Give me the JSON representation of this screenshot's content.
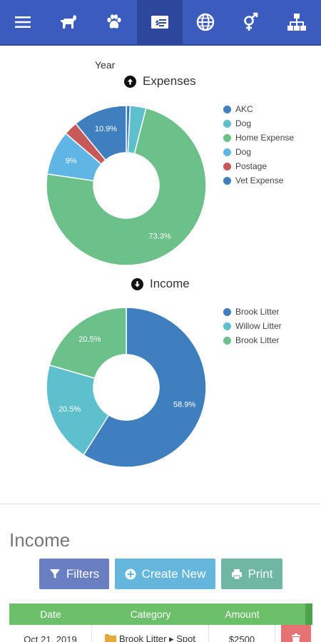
{
  "nav": {
    "items": [
      {
        "icon": "menu-icon"
      },
      {
        "icon": "dog-icon"
      },
      {
        "icon": "paw-icon"
      },
      {
        "icon": "finance-icon",
        "active": true
      },
      {
        "icon": "globe-icon"
      },
      {
        "icon": "gender-icon"
      },
      {
        "icon": "sitemap-icon"
      }
    ]
  },
  "filter": {
    "period_label": "Year"
  },
  "expenses": {
    "title": "Expenses",
    "chart_data": {
      "type": "pie",
      "donut": true,
      "title": "Expenses",
      "categories": [
        "AKC",
        "Dog",
        "Home Expense",
        "Dog",
        "Postage",
        "Vet Expense"
      ],
      "values": [
        0.8,
        3.2,
        73.3,
        9.0,
        2.8,
        10.9
      ],
      "colors": [
        "#3f7fc0",
        "#5ec0cc",
        "#6cc08a",
        "#5fb6e4",
        "#c65a5a",
        "#3f7fc0"
      ],
      "data_labels": [
        "",
        "",
        "73.3%",
        "9%",
        "",
        "10.9%"
      ],
      "legend_position": "right"
    }
  },
  "income": {
    "title": "Income",
    "chart_data": {
      "type": "pie",
      "donut": true,
      "title": "Income",
      "categories": [
        "Brook Litter",
        "Willow Litter",
        "Brook Litter"
      ],
      "values": [
        58.9,
        20.5,
        20.5
      ],
      "colors": [
        "#3f7fc0",
        "#5ec0cc",
        "#6cc08a"
      ],
      "data_labels": [
        "58.9%",
        "20.5%",
        "20.5%"
      ],
      "legend_position": "right"
    }
  },
  "section": {
    "title": "Income",
    "buttons": {
      "filters": "Filters",
      "create": "Create New",
      "print": "Print"
    }
  },
  "table": {
    "columns": [
      "Date",
      "Category",
      "Amount"
    ],
    "rows": [
      {
        "date": "Oct 21, 2019",
        "category": "Brook Litter ▸ Spot",
        "amount": "$2500"
      }
    ]
  }
}
